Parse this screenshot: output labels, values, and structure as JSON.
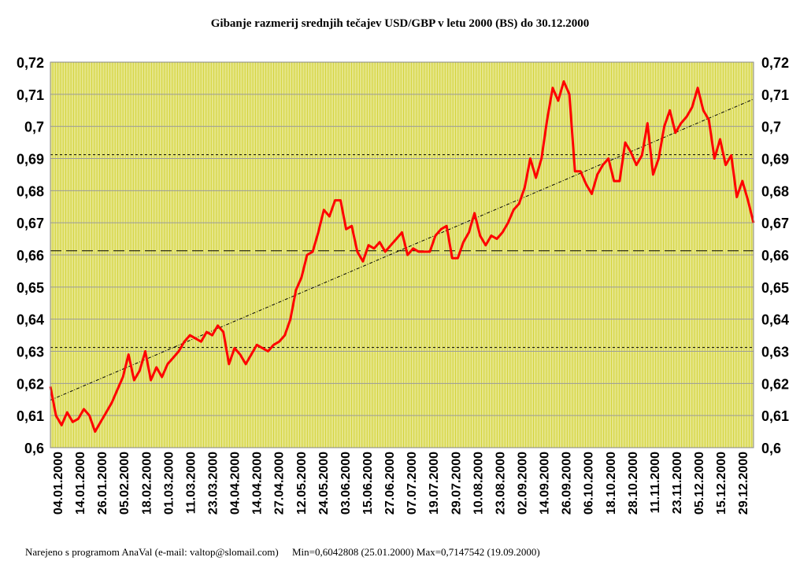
{
  "chart_data": {
    "type": "line",
    "title": "Gibanje razmerij srednjih tečajev USD/GBP v letu 2000 (BS) do 30.12.2000",
    "ylim": [
      0.6,
      0.72
    ],
    "yticks": [
      "0,6",
      "0,61",
      "0,62",
      "0,63",
      "0,64",
      "0,65",
      "0,66",
      "0,67",
      "0,68",
      "0,69",
      "0,7",
      "0,71",
      "0,72"
    ],
    "x_tick_labels": [
      "04.01.2000",
      "14.01.2000",
      "26.01.2000",
      "05.02.2000",
      "18.02.2000",
      "01.03.2000",
      "11.03.2000",
      "23.03.2000",
      "04.04.2000",
      "14.04.2000",
      "27.04.2000",
      "12.05.2000",
      "24.05.2000",
      "03.06.2000",
      "15.06.2000",
      "27.06.2000",
      "07.07.2000",
      "19.07.2000",
      "29.07.2000",
      "10.08.2000",
      "23.08.2000",
      "02.09.2000",
      "14.09.2000",
      "26.09.2000",
      "06.10.2000",
      "18.10.2000",
      "28.10.2000",
      "11.11.2000",
      "23.11.2000",
      "05.12.2000",
      "15.12.2000",
      "29.12.2000"
    ],
    "x_range": [
      0,
      252
    ],
    "grid": true,
    "legend": "none",
    "colors": {
      "plot_bg": "#e6e68a",
      "grid": "#d4d43c",
      "series": "#ff0000",
      "border": "#888888"
    },
    "series": [
      {
        "x": [
          0,
          2,
          4,
          6,
          8,
          10,
          12,
          14,
          16,
          18,
          20,
          22,
          24,
          26,
          28,
          30,
          32,
          34,
          36,
          38,
          40,
          42,
          44,
          46,
          48,
          50,
          52,
          54,
          56,
          58,
          60,
          62,
          64,
          66,
          68,
          70,
          72,
          74,
          76,
          78,
          80,
          82,
          84,
          86,
          88,
          90,
          92,
          94,
          96,
          98,
          100,
          102,
          104,
          106,
          108,
          110,
          112,
          114,
          116,
          118,
          120,
          122,
          124,
          126,
          128,
          130,
          132,
          134,
          136,
          138,
          140,
          142,
          144,
          146,
          148,
          150,
          152,
          154,
          156,
          158,
          160,
          162,
          164,
          166,
          168,
          170,
          172,
          174,
          176,
          178,
          180,
          182,
          184,
          186,
          188,
          190,
          192,
          194,
          196,
          198,
          200,
          202,
          204,
          206,
          208,
          210,
          212,
          214,
          216,
          218,
          220,
          222,
          224,
          226,
          228,
          230,
          232,
          234,
          236,
          238,
          240,
          242,
          244,
          246,
          248,
          250,
          252
        ],
        "y": [
          0.619,
          0.61,
          0.607,
          0.611,
          0.608,
          0.609,
          0.612,
          0.61,
          0.605,
          0.608,
          0.611,
          0.614,
          0.618,
          0.622,
          0.629,
          0.621,
          0.624,
          0.63,
          0.621,
          0.625,
          0.622,
          0.626,
          0.628,
          0.63,
          0.633,
          0.635,
          0.634,
          0.633,
          0.636,
          0.635,
          0.638,
          0.636,
          0.626,
          0.631,
          0.629,
          0.626,
          0.629,
          0.632,
          0.631,
          0.63,
          0.632,
          0.633,
          0.635,
          0.64,
          0.649,
          0.653,
          0.66,
          0.661,
          0.667,
          0.674,
          0.672,
          0.677,
          0.677,
          0.668,
          0.669,
          0.661,
          0.658,
          0.663,
          0.662,
          0.664,
          0.661,
          0.663,
          0.665,
          0.667,
          0.66,
          0.662,
          0.661,
          0.661,
          0.661,
          0.666,
          0.668,
          0.669,
          0.659,
          0.659,
          0.664,
          0.667,
          0.673,
          0.666,
          0.663,
          0.666,
          0.665,
          0.667,
          0.67,
          0.674,
          0.676,
          0.681,
          0.69,
          0.684,
          0.69,
          0.702,
          0.712,
          0.708,
          0.714,
          0.71,
          0.686,
          0.686,
          0.682,
          0.679,
          0.685,
          0.688,
          0.69,
          0.683,
          0.683,
          0.695,
          0.692,
          0.688,
          0.691,
          0.701,
          0.685,
          0.69,
          0.7,
          0.705,
          0.698,
          0.701,
          0.703,
          0.706,
          0.712,
          0.705,
          0.702,
          0.69,
          0.696,
          0.688,
          0.691,
          0.678,
          0.683,
          0.677,
          0.67
        ]
      }
    ],
    "trend_line": {
      "x": [
        0,
        252
      ],
      "y": [
        0.6148,
        0.7085
      ]
    },
    "reference_lines": [
      0.6312,
      0.6613,
      0.6912
    ],
    "footer": {
      "credit": "Narejeno s programom AnaVal (e-mail: valtop@slomail.com)",
      "minmax": "Min=0,6042808 (25.01.2000) Max=0,7147542 (19.09.2000)"
    }
  }
}
